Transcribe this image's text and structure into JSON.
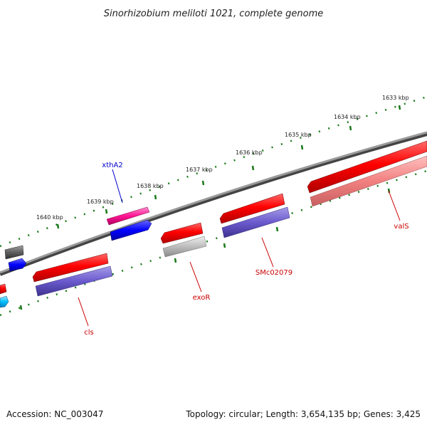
{
  "title": "Sinorhizobium meliloti 1021, complete genome",
  "accession": "Accession: NC_003047",
  "summary": "Topology: circular; Length: 3,654,135 bp; Genes: 3,425",
  "colors": {
    "backbone": "#7a7a7a",
    "ruler": "#1a7a1a",
    "label_red": "#cc0000",
    "label_blue": "#0000cc"
  },
  "kbp_labels": [
    "1633 kbp",
    "1634 kbp",
    "1635 kbp",
    "1636 kbp",
    "1637 kbp",
    "1638 kbp",
    "1639 kbp",
    "1640 kbp"
  ],
  "gene_labels": {
    "xthA2": "xthA2",
    "exoR": "exoR",
    "cls": "cls",
    "SMc02079": "SMc02079",
    "valS": "valS"
  }
}
